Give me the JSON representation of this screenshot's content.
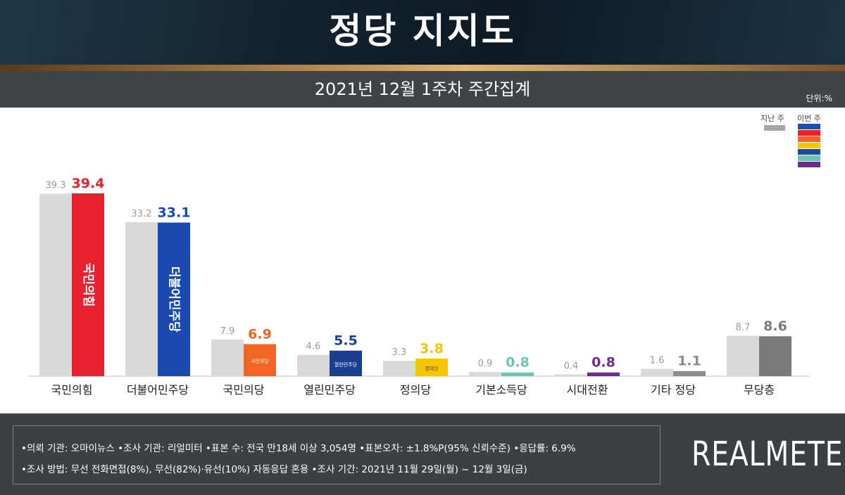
{
  "header": {
    "title": "정당 지지도"
  },
  "subheader": {
    "subtitle": "2021년 12월 1주차 주간집계",
    "unit": "단위:%"
  },
  "legend": {
    "previous": {
      "label": "지난 주",
      "color": "#a6a6a6"
    },
    "current": {
      "label": "이번 주",
      "colors": [
        "#1e4fb0",
        "#e8212e",
        "#f26522",
        "#f6c600",
        "#1a4a9a",
        "#6fc3b2",
        "#6a2c90"
      ]
    }
  },
  "chart_data": {
    "type": "bar",
    "categories": [
      "국민의힘",
      "더불어민주당",
      "국민의당",
      "열린민주당",
      "정의당",
      "기본소득당",
      "시대전환",
      "기타 정당",
      "무당층"
    ],
    "series": [
      {
        "name": "지난 주",
        "values": [
          39.3,
          33.2,
          7.9,
          4.6,
          3.3,
          0.9,
          0.4,
          1.6,
          8.7
        ]
      },
      {
        "name": "이번 주",
        "values": [
          39.4,
          33.1,
          6.9,
          5.5,
          3.8,
          0.8,
          0.8,
          1.1,
          8.6
        ]
      }
    ],
    "current_colors": [
      "#e8212e",
      "#1a4ab0",
      "#f26522",
      "#1b3f8f",
      "#f6c600",
      "#6fc3b2",
      "#6a2c90",
      "#8c8c8c",
      "#7a7a7a"
    ],
    "previous_color": "#d9d9d9",
    "value_label_previous_color": "#9a9a9a",
    "ylim": [
      0,
      45
    ],
    "bar_logos": [
      "국민의힘",
      "더불어민주당",
      "국민의당",
      "열린민주당",
      "정의당",
      "",
      "",
      "",
      ""
    ],
    "grid": false,
    "legend_position": "top-right"
  },
  "footer": {
    "line1": "•의뢰 기관: 오마이뉴스  •조사 기관: 리얼미터  •표본 수: 전국 만18세 이상 3,054명  •표본오차: ±1.8%P(95% 신뢰수준)  •응답률: 6.9%",
    "line2": "•조사 방법: 무선 전화면접(8%), 무선(82%)·유선(10%) 자동응답 혼용   •조사 기간: 2021년 11월 29일(월) ~ 12월 3일(금)",
    "logo": "REALMETER"
  }
}
